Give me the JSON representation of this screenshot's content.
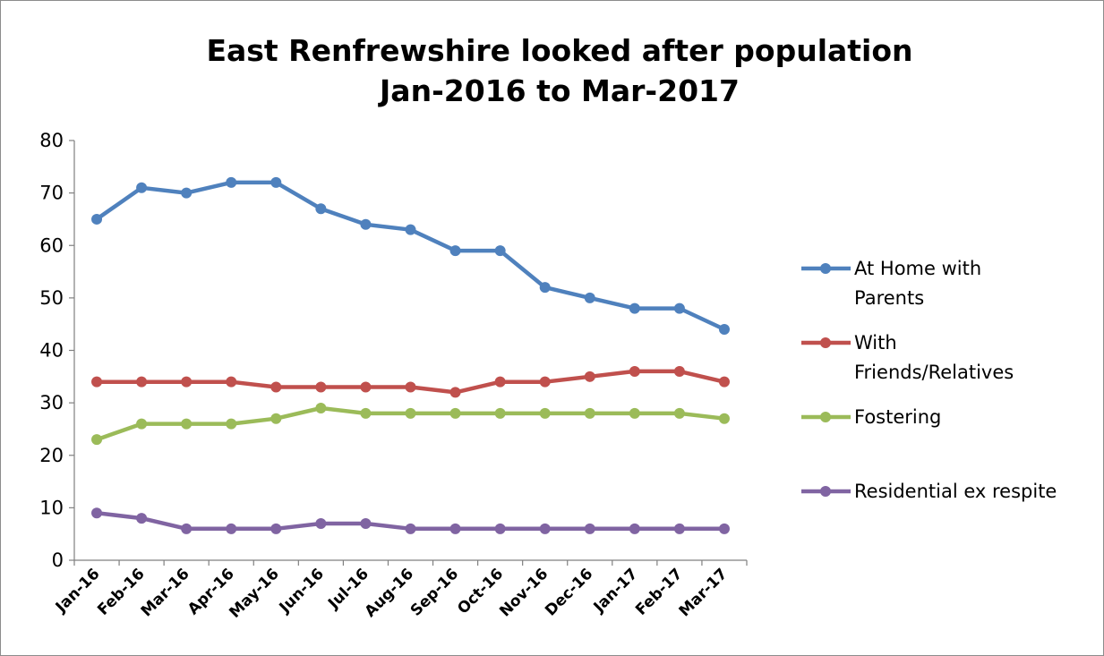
{
  "chart_data": {
    "type": "line",
    "title_line1": "East Renfrewshire looked after population",
    "title_line2": "Jan-2016 to Mar-2017",
    "categories": [
      "Jan-16",
      "Feb-16",
      "Mar-16",
      "Apr-16",
      "May-16",
      "Jun-16",
      "Jul-16",
      "Aug-16",
      "Sep-16",
      "Oct-16",
      "Nov-16",
      "Dec-16",
      "Jan-17",
      "Feb-17",
      "Mar-17"
    ],
    "ylim": [
      0,
      80
    ],
    "yticks": [
      "0",
      "10",
      "20",
      "30",
      "40",
      "50",
      "60",
      "70",
      "80"
    ],
    "grid": false,
    "legend_position": "right",
    "series": [
      {
        "name": "At Home with Parents",
        "legend_lines": [
          "At Home with",
          "Parents"
        ],
        "color": "#4f81bd",
        "values": [
          65,
          71,
          70,
          72,
          72,
          67,
          64,
          63,
          59,
          59,
          52,
          50,
          48,
          48,
          44
        ]
      },
      {
        "name": "With Friends/Relatives",
        "legend_lines": [
          "With",
          "Friends/Relatives"
        ],
        "color": "#c0504d",
        "values": [
          34,
          34,
          34,
          34,
          33,
          33,
          33,
          33,
          32,
          34,
          34,
          35,
          36,
          36,
          34
        ]
      },
      {
        "name": "Fostering",
        "legend_lines": [
          "Fostering"
        ],
        "color": "#9bbb59",
        "values": [
          23,
          26,
          26,
          26,
          27,
          29,
          28,
          28,
          28,
          28,
          28,
          28,
          28,
          28,
          27
        ]
      },
      {
        "name": "Residential ex respite",
        "legend_lines": [
          "Residential ex respite"
        ],
        "color": "#8064a2",
        "values": [
          9,
          8,
          6,
          6,
          6,
          7,
          7,
          6,
          6,
          6,
          6,
          6,
          6,
          6,
          6
        ]
      }
    ]
  }
}
